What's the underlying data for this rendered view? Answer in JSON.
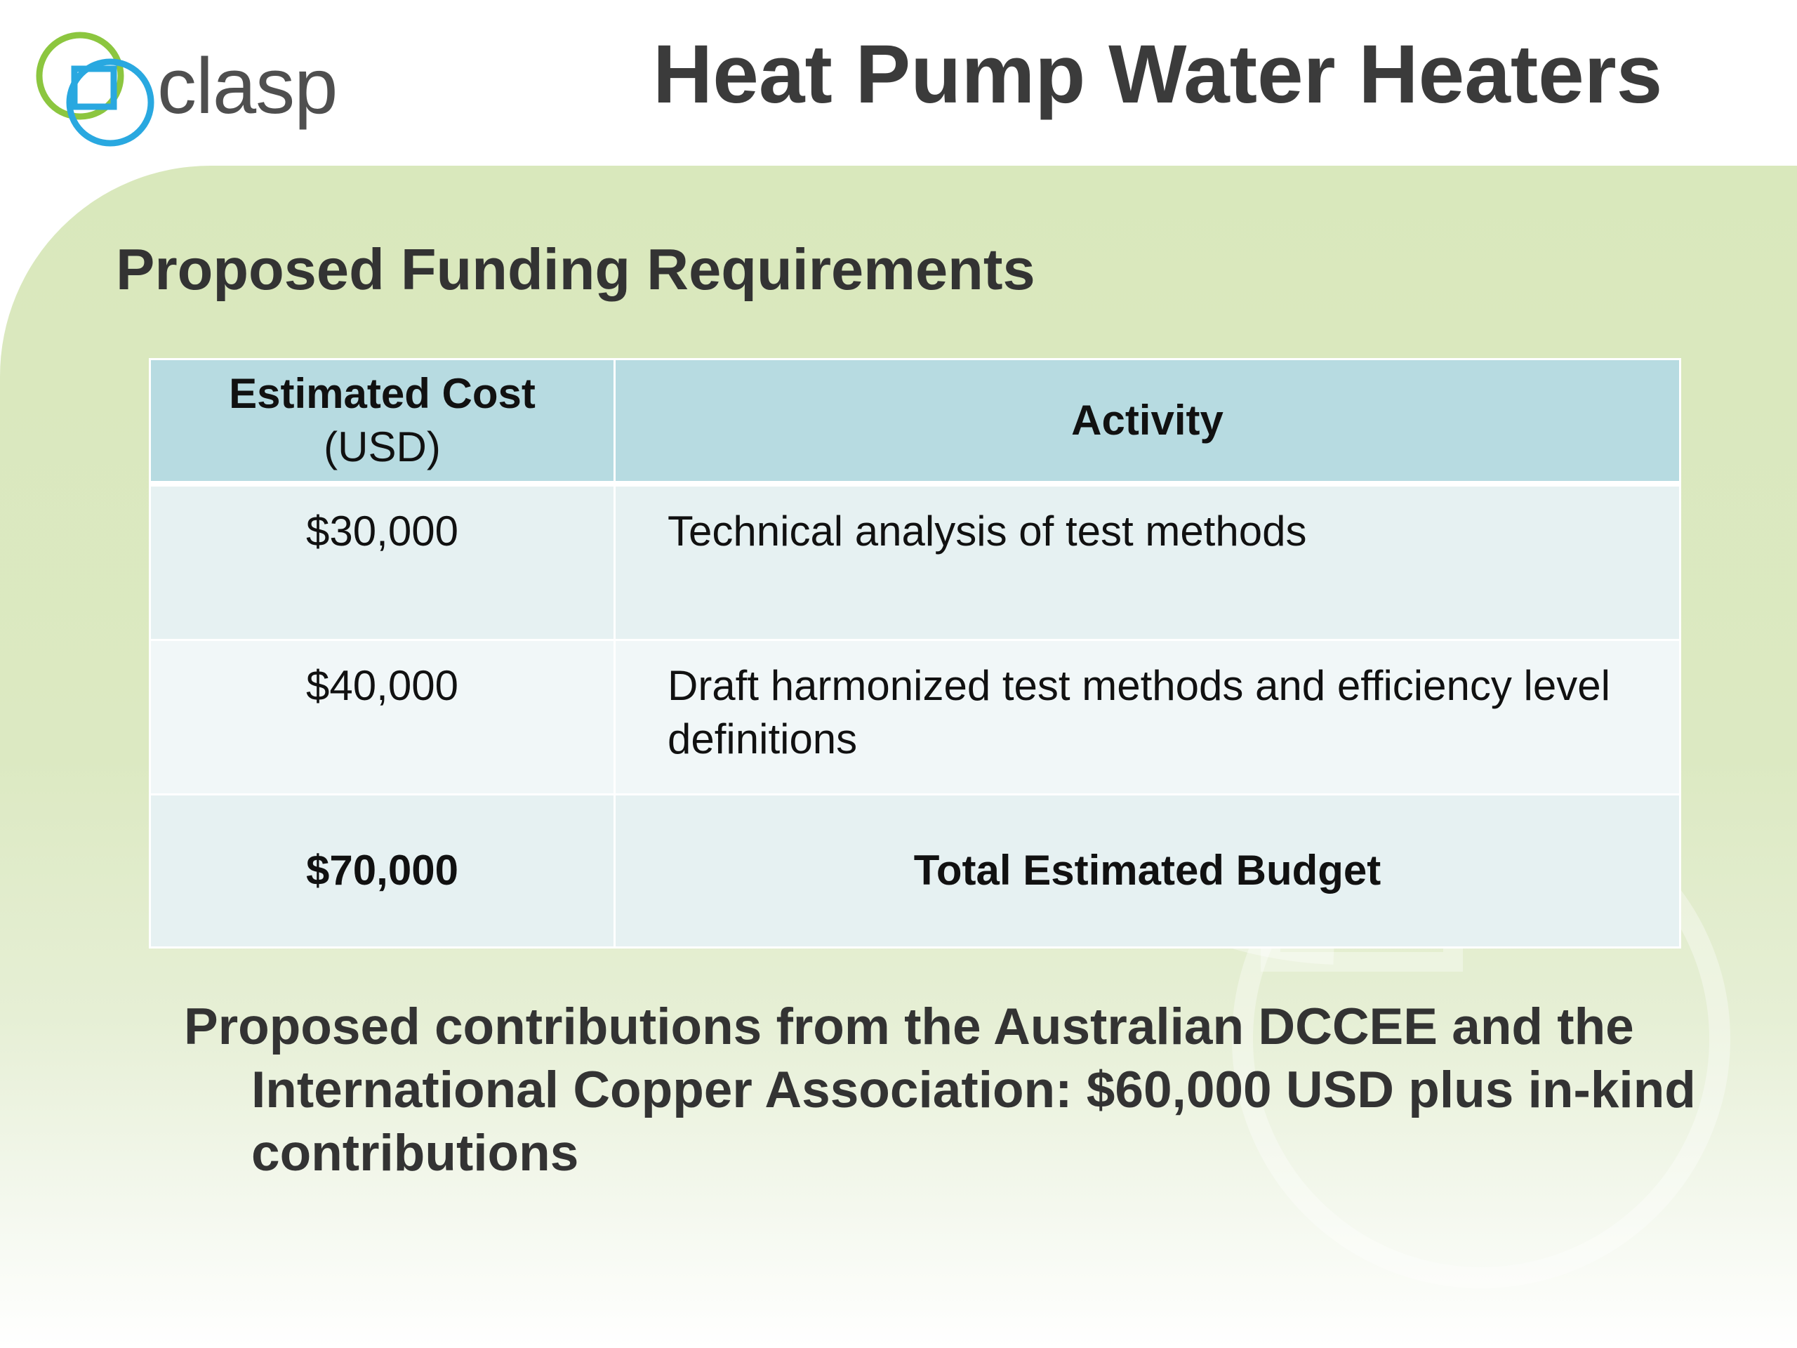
{
  "brand": {
    "name": "clasp",
    "colors": {
      "ring_green": "#8cc63f",
      "ring_blue": "#29a8e0",
      "text": "#4f4f4f"
    }
  },
  "slide": {
    "title": "Heat Pump Water Heaters",
    "section_title": "Proposed Funding Requirements"
  },
  "table": {
    "header": {
      "cost_label": "Estimated Cost",
      "cost_unit": "(USD)",
      "activity_label": "Activity"
    },
    "rows": [
      {
        "cost": "$30,000",
        "activity": "Technical analysis of test methods"
      },
      {
        "cost": "$40,000",
        "activity": "Draft harmonized test methods and efficiency level definitions"
      }
    ],
    "total": {
      "cost": "$70,000",
      "activity": "Total Estimated Budget"
    }
  },
  "note": "Proposed contributions from the Australian DCCEE and the International Copper Association: $60,000 USD plus in-kind contributions",
  "colors": {
    "background_green": "#dce9c2",
    "header_fill": "#b7dbe1",
    "row_fill_odd": "#e6f1f2",
    "row_fill_even": "#f1f7f8",
    "title_text": "#3b3b3b"
  }
}
